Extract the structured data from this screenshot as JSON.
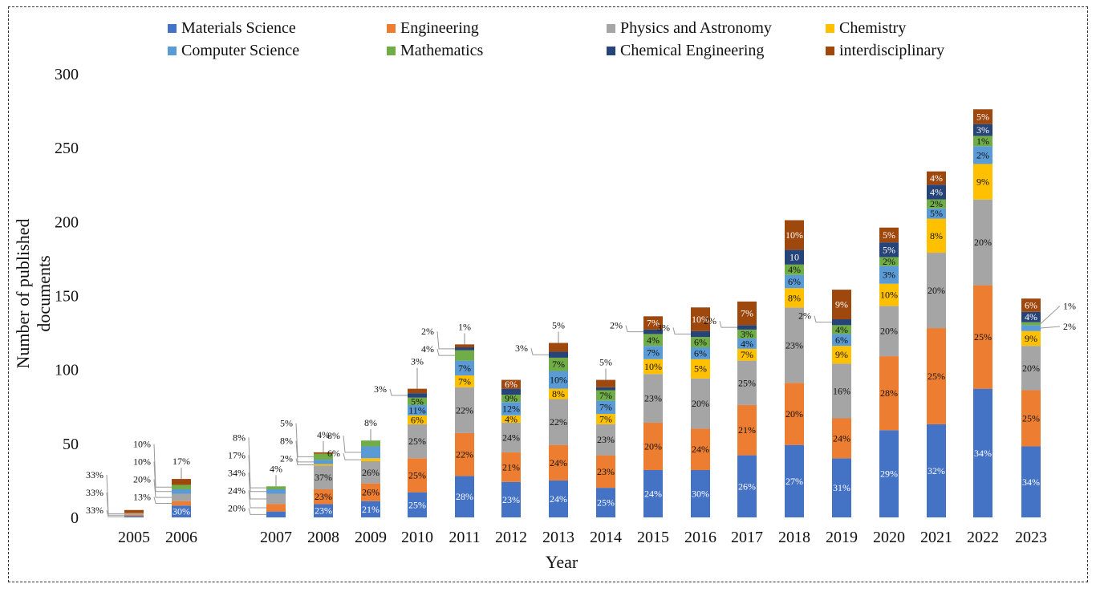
{
  "chart_data": {
    "type": "bar",
    "stacked": true,
    "xlabel": "Year",
    "ylabel": "Number of published documents",
    "ylim": [
      0,
      300
    ],
    "yticks": [
      0,
      50,
      100,
      150,
      200,
      250,
      300
    ],
    "categories": [
      "2005",
      "2006",
      "2007",
      "2008",
      "2009",
      "2010",
      "2011",
      "2012",
      "2013",
      "2014",
      "2015",
      "2016",
      "2017",
      "2018",
      "2019",
      "2020",
      "2021",
      "2022",
      "2023"
    ],
    "series": [
      {
        "name": "Materials Science",
        "color": "#4472C4",
        "values": [
          1,
          8,
          4,
          9,
          11,
          17,
          28,
          24,
          25,
          20,
          32,
          32,
          42,
          49,
          40,
          59,
          63,
          87,
          48
        ]
      },
      {
        "name": "Engineering",
        "color": "#ED7D31",
        "values": [
          1,
          3,
          5,
          10,
          12,
          23,
          29,
          20,
          24,
          22,
          32,
          28,
          34,
          42,
          27,
          50,
          65,
          70,
          38
        ]
      },
      {
        "name": "Physics and Astronomy",
        "color": "#A5A5A5",
        "values": [
          1,
          5,
          7,
          16,
          15,
          23,
          31,
          20,
          31,
          21,
          33,
          34,
          30,
          51,
          37,
          34,
          51,
          58,
          30
        ]
      },
      {
        "name": "Chemistry",
        "color": "#FFC000",
        "values": [
          0,
          0,
          0,
          1,
          2,
          6,
          8,
          5,
          7,
          7,
          10,
          13,
          8,
          13,
          12,
          15,
          23,
          24,
          10
        ]
      },
      {
        "name": "Computer Science",
        "color": "#5B9BD5",
        "values": [
          0,
          3,
          3,
          3,
          8,
          7,
          10,
          9,
          12,
          9,
          9,
          8,
          7,
          9,
          8,
          12,
          7,
          12,
          4
        ]
      },
      {
        "name": "Mathematics",
        "color": "#70AD47",
        "values": [
          0,
          3,
          2,
          4,
          4,
          5,
          7,
          5,
          9,
          7,
          8,
          7,
          6,
          7,
          6,
          6,
          6,
          7,
          2
        ]
      },
      {
        "name": "Chemical Engineering",
        "color": "#264478",
        "values": [
          0,
          0,
          0,
          0,
          0,
          3,
          2,
          4,
          4,
          2,
          3,
          4,
          3,
          10,
          4,
          10,
          10,
          8,
          7
        ]
      },
      {
        "name": "interdisciplinary",
        "color": "#9E480E",
        "values": [
          2,
          4,
          0,
          1,
          0,
          3,
          2,
          6,
          6,
          5,
          9,
          16,
          16,
          20,
          20,
          10,
          9,
          10,
          9
        ]
      }
    ],
    "inside_labels": [
      {
        "year": "2006",
        "series": "Materials Science",
        "text": "30%"
      },
      {
        "year": "2008",
        "series": "Materials Science",
        "text": "23%"
      },
      {
        "year": "2008",
        "series": "Engineering",
        "text": "23%"
      },
      {
        "year": "2008",
        "series": "Physics and Astronomy",
        "text": "37%"
      },
      {
        "year": "2009",
        "series": "Materials Science",
        "text": "21%"
      },
      {
        "year": "2009",
        "series": "Engineering",
        "text": "26%"
      },
      {
        "year": "2009",
        "series": "Physics and Astronomy",
        "text": "26%"
      },
      {
        "year": "2010",
        "series": "Materials Science",
        "text": "25%"
      },
      {
        "year": "2010",
        "series": "Engineering",
        "text": "25%"
      },
      {
        "year": "2010",
        "series": "Physics and Astronomy",
        "text": "25%"
      },
      {
        "year": "2010",
        "series": "Chemistry",
        "text": "6%"
      },
      {
        "year": "2010",
        "series": "Computer Science",
        "text": "11%"
      },
      {
        "year": "2010",
        "series": "Mathematics",
        "text": "5%"
      },
      {
        "year": "2011",
        "series": "Materials Science",
        "text": "28%"
      },
      {
        "year": "2011",
        "series": "Engineering",
        "text": "22%"
      },
      {
        "year": "2011",
        "series": "Physics and Astronomy",
        "text": "22%"
      },
      {
        "year": "2011",
        "series": "Chemistry",
        "text": "7%"
      },
      {
        "year": "2011",
        "series": "Computer Science",
        "text": "7%"
      },
      {
        "year": "2012",
        "series": "Materials Science",
        "text": "23%"
      },
      {
        "year": "2012",
        "series": "Engineering",
        "text": "21%"
      },
      {
        "year": "2012",
        "series": "Physics and Astronomy",
        "text": "24%"
      },
      {
        "year": "2012",
        "series": "Chemistry",
        "text": "4%"
      },
      {
        "year": "2012",
        "series": "Computer Science",
        "text": "12%"
      },
      {
        "year": "2012",
        "series": "Mathematics",
        "text": "9%"
      },
      {
        "year": "2012",
        "series": "interdisciplinary",
        "text": "6%"
      },
      {
        "year": "2013",
        "series": "Materials Science",
        "text": "24%"
      },
      {
        "year": "2013",
        "series": "Engineering",
        "text": "24%"
      },
      {
        "year": "2013",
        "series": "Physics and Astronomy",
        "text": "22%"
      },
      {
        "year": "2013",
        "series": "Chemistry",
        "text": "8%"
      },
      {
        "year": "2013",
        "series": "Computer Science",
        "text": "10%"
      },
      {
        "year": "2013",
        "series": "Mathematics",
        "text": "7%"
      },
      {
        "year": "2014",
        "series": "Materials Science",
        "text": "25%"
      },
      {
        "year": "2014",
        "series": "Engineering",
        "text": "23%"
      },
      {
        "year": "2014",
        "series": "Physics and Astronomy",
        "text": "23%"
      },
      {
        "year": "2014",
        "series": "Chemistry",
        "text": "7%"
      },
      {
        "year": "2014",
        "series": "Computer Science",
        "text": "7%"
      },
      {
        "year": "2014",
        "series": "Mathematics",
        "text": "7%"
      },
      {
        "year": "2015",
        "series": "Materials Science",
        "text": "24%"
      },
      {
        "year": "2015",
        "series": "Engineering",
        "text": "20%"
      },
      {
        "year": "2015",
        "series": "Physics and Astronomy",
        "text": "23%"
      },
      {
        "year": "2015",
        "series": "Chemistry",
        "text": "10%"
      },
      {
        "year": "2015",
        "series": "Computer Science",
        "text": "7%"
      },
      {
        "year": "2015",
        "series": "Mathematics",
        "text": "4%"
      },
      {
        "year": "2015",
        "series": "interdisciplinary",
        "text": "7%"
      },
      {
        "year": "2016",
        "series": "Materials Science",
        "text": "30%"
      },
      {
        "year": "2016",
        "series": "Engineering",
        "text": "24%"
      },
      {
        "year": "2016",
        "series": "Physics and Astronomy",
        "text": "20%"
      },
      {
        "year": "2016",
        "series": "Chemistry",
        "text": "5%"
      },
      {
        "year": "2016",
        "series": "Computer Science",
        "text": "6%"
      },
      {
        "year": "2016",
        "series": "Mathematics",
        "text": "6%"
      },
      {
        "year": "2016",
        "series": "interdisciplinary",
        "text": "10%"
      },
      {
        "year": "2017",
        "series": "Materials Science",
        "text": "26%"
      },
      {
        "year": "2017",
        "series": "Engineering",
        "text": "21%"
      },
      {
        "year": "2017",
        "series": "Physics and Astronomy",
        "text": "25%"
      },
      {
        "year": "2017",
        "series": "Chemistry",
        "text": "7%"
      },
      {
        "year": "2017",
        "series": "Computer Science",
        "text": "4%"
      },
      {
        "year": "2017",
        "series": "Mathematics",
        "text": "3%"
      },
      {
        "year": "2017",
        "series": "interdisciplinary",
        "text": "7%"
      },
      {
        "year": "2018",
        "series": "Materials Science",
        "text": "27%"
      },
      {
        "year": "2018",
        "series": "Engineering",
        "text": "20%"
      },
      {
        "year": "2018",
        "series": "Physics and Astronomy",
        "text": "23%"
      },
      {
        "year": "2018",
        "series": "Chemistry",
        "text": "8%"
      },
      {
        "year": "2018",
        "series": "Computer Science",
        "text": "6%"
      },
      {
        "year": "2018",
        "series": "Mathematics",
        "text": "4%"
      },
      {
        "year": "2018",
        "series": "Chemical Engineering",
        "text": "10"
      },
      {
        "year": "2018",
        "series": "interdisciplinary",
        "text": "10%"
      },
      {
        "year": "2019",
        "series": "Materials Science",
        "text": "31%"
      },
      {
        "year": "2019",
        "series": "Engineering",
        "text": "24%"
      },
      {
        "year": "2019",
        "series": "Physics and Astronomy",
        "text": "16%"
      },
      {
        "year": "2019",
        "series": "Chemistry",
        "text": "9%"
      },
      {
        "year": "2019",
        "series": "Computer Science",
        "text": "6%"
      },
      {
        "year": "2019",
        "series": "Mathematics",
        "text": "4%"
      },
      {
        "year": "2019",
        "series": "interdisciplinary",
        "text": "9%"
      },
      {
        "year": "2020",
        "series": "Materials Science",
        "text": "29%"
      },
      {
        "year": "2020",
        "series": "Engineering",
        "text": "28%"
      },
      {
        "year": "2020",
        "series": "Physics and Astronomy",
        "text": "20%"
      },
      {
        "year": "2020",
        "series": "Chemistry",
        "text": "10%"
      },
      {
        "year": "2020",
        "series": "Computer Science",
        "text": "3%"
      },
      {
        "year": "2020",
        "series": "Mathematics",
        "text": "2%"
      },
      {
        "year": "2020",
        "series": "Chemical Engineering",
        "text": "5%"
      },
      {
        "year": "2020",
        "series": "interdisciplinary",
        "text": "5%"
      },
      {
        "year": "2021",
        "series": "Materials Science",
        "text": "32%"
      },
      {
        "year": "2021",
        "series": "Engineering",
        "text": "25%"
      },
      {
        "year": "2021",
        "series": "Physics and Astronomy",
        "text": "20%"
      },
      {
        "year": "2021",
        "series": "Chemistry",
        "text": "8%"
      },
      {
        "year": "2021",
        "series": "Computer Science",
        "text": "5%"
      },
      {
        "year": "2021",
        "series": "Mathematics",
        "text": "2%"
      },
      {
        "year": "2021",
        "series": "Chemical Engineering",
        "text": "4%"
      },
      {
        "year": "2021",
        "series": "interdisciplinary",
        "text": "4%"
      },
      {
        "year": "2022",
        "series": "Materials Science",
        "text": "34%"
      },
      {
        "year": "2022",
        "series": "Engineering",
        "text": "25%"
      },
      {
        "year": "2022",
        "series": "Physics and Astronomy",
        "text": "20%"
      },
      {
        "year": "2022",
        "series": "Chemistry",
        "text": "9%"
      },
      {
        "year": "2022",
        "series": "Computer Science",
        "text": "2%"
      },
      {
        "year": "2022",
        "series": "Mathematics",
        "text": "1%"
      },
      {
        "year": "2022",
        "series": "Chemical Engineering",
        "text": "3%"
      },
      {
        "year": "2022",
        "series": "interdisciplinary",
        "text": "5%"
      },
      {
        "year": "2023",
        "series": "Materials Science",
        "text": "34%"
      },
      {
        "year": "2023",
        "series": "Engineering",
        "text": "25%"
      },
      {
        "year": "2023",
        "series": "Physics and Astronomy",
        "text": "20%"
      },
      {
        "year": "2023",
        "series": "Chemistry",
        "text": "9%"
      },
      {
        "year": "2023",
        "series": "Chemical Engineering",
        "text": "4%"
      },
      {
        "year": "2023",
        "series": "interdisciplinary",
        "text": "6%"
      }
    ],
    "callouts": [
      {
        "year": "2005",
        "series": "Materials Science",
        "text": "33%"
      },
      {
        "year": "2005",
        "series": "Engineering",
        "text": "33%"
      },
      {
        "year": "2005",
        "series": "Physics and Astronomy",
        "text": "33%"
      },
      {
        "year": "2006",
        "series": "Engineering",
        "text": "13%"
      },
      {
        "year": "2006",
        "series": "Physics and Astronomy",
        "text": "20%"
      },
      {
        "year": "2006",
        "series": "Computer Science",
        "text": "10%"
      },
      {
        "year": "2006",
        "series": "Mathematics",
        "text": "10%"
      },
      {
        "year": "2006",
        "series": "interdisciplinary",
        "text": "17%"
      },
      {
        "year": "2007",
        "series": "Materials Science",
        "text": "20%"
      },
      {
        "year": "2007",
        "series": "Engineering",
        "text": "24%"
      },
      {
        "year": "2007",
        "series": "Physics and Astronomy",
        "text": "34%"
      },
      {
        "year": "2007",
        "series": "Computer Science",
        "text": "17%"
      },
      {
        "year": "2007",
        "series": "Mathematics",
        "text": "8%"
      },
      {
        "year": "2007",
        "series": "interdisciplinary",
        "text": "4%"
      },
      {
        "year": "2008",
        "series": "Chemistry",
        "text": "2%"
      },
      {
        "year": "2008",
        "series": "Computer Science",
        "text": "8%"
      },
      {
        "year": "2008",
        "series": "Mathematics",
        "text": "5%"
      },
      {
        "year": "2008",
        "series": "interdisciplinary",
        "text": "4%"
      },
      {
        "year": "2009",
        "series": "Chemistry",
        "text": "6%"
      },
      {
        "year": "2009",
        "series": "Computer Science",
        "text": "8%"
      },
      {
        "year": "2009",
        "series": "Mathematics",
        "text": "8%"
      },
      {
        "year": "2010",
        "series": "Chemical Engineering",
        "text": "3%"
      },
      {
        "year": "2010",
        "series": "interdisciplinary",
        "text": "3%"
      },
      {
        "year": "2011",
        "series": "Mathematics",
        "text": "4%"
      },
      {
        "year": "2011",
        "series": "Chemical Engineering",
        "text": "2%"
      },
      {
        "year": "2011",
        "series": "interdisciplinary",
        "text": "1%"
      },
      {
        "year": "2013",
        "series": "Chemical Engineering",
        "text": "3%"
      },
      {
        "year": "2013",
        "series": "interdisciplinary",
        "text": "5%"
      },
      {
        "year": "2014",
        "series": "interdisciplinary",
        "text": "5%"
      },
      {
        "year": "2015",
        "series": "Chemical Engineering",
        "text": "2%"
      },
      {
        "year": "2016",
        "series": "Chemical Engineering",
        "text": "3%"
      },
      {
        "year": "2017",
        "series": "Chemical Engineering",
        "text": "2%"
      },
      {
        "year": "2019",
        "series": "Chemical Engineering",
        "text": "2%"
      },
      {
        "year": "2023",
        "series": "Mathematics",
        "text": "1%"
      },
      {
        "year": "2023",
        "series": "Computer Science",
        "text": "2%"
      }
    ]
  }
}
